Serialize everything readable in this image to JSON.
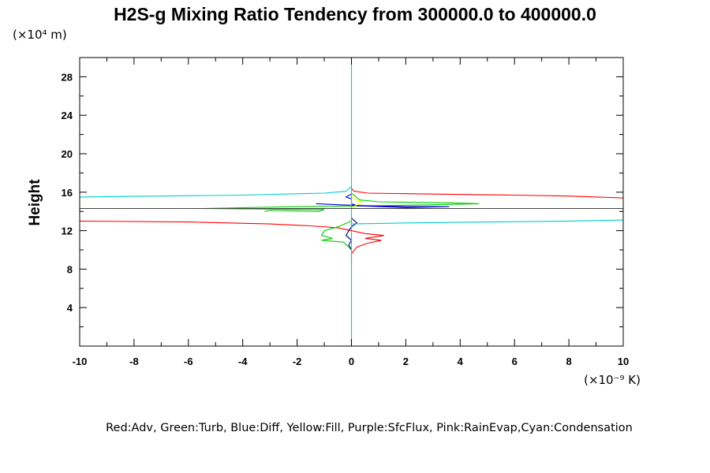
{
  "chart_data": {
    "type": "line",
    "title": "H2S-g Mixing Ratio Tendency from 300000.0 to 400000.0",
    "ylabel": "Height",
    "y_unit": "(×10⁴ m)",
    "x_unit": "(×10⁻⁹ K)",
    "legend_text": "Red:Adv, Green:Turb, Blue:Diff, Yellow:Fill, Purple:SfcFlux, Pink:RainEvap,Cyan:Condensation",
    "xlim": [
      -10,
      10
    ],
    "ylim": [
      0,
      30
    ],
    "x_ticks": [
      "-10",
      "-8",
      "-6",
      "-4",
      "-2",
      "0",
      "2",
      "4",
      "6",
      "8",
      "10"
    ],
    "y_ticks": [
      "4",
      "8",
      "12",
      "16",
      "20",
      "24",
      "28"
    ],
    "series": [
      {
        "name": "Adv",
        "color": "#ff0000",
        "points": [
          [
            -10,
            13.0
          ],
          [
            -6,
            12.9
          ],
          [
            -3,
            12.7
          ],
          [
            -1.5,
            12.5
          ],
          [
            -0.5,
            12.3
          ],
          [
            0,
            12.0
          ],
          [
            0.5,
            11.7
          ],
          [
            1.2,
            11.5
          ],
          [
            0.5,
            11.2
          ],
          [
            1.1,
            11.0
          ],
          [
            0.6,
            10.7
          ],
          [
            0.2,
            10.3
          ],
          [
            0,
            9.6
          ],
          [
            0,
            9.2
          ],
          [
            0,
            8.5
          ]
        ]
      },
      {
        "name": "Adv",
        "color": "#ff0000",
        "points": [
          [
            0,
            16.4
          ],
          [
            0.1,
            16.1
          ],
          [
            0.6,
            15.9
          ],
          [
            3,
            15.8
          ],
          [
            6,
            15.7
          ],
          [
            8,
            15.6
          ],
          [
            10,
            15.4
          ]
        ]
      },
      {
        "name": "Turb",
        "color": "#00cc00",
        "points": [
          [
            -1.0,
            14.2
          ],
          [
            -1.5,
            14.2
          ],
          [
            -5.5,
            14.3
          ],
          [
            -2,
            14.5
          ],
          [
            1,
            14.6
          ],
          [
            3,
            14.7
          ],
          [
            4.7,
            14.8
          ],
          [
            3.5,
            14.9
          ],
          [
            1,
            15.0
          ],
          [
            0.3,
            15.2
          ],
          [
            0,
            15.9
          ]
        ]
      },
      {
        "name": "Turb",
        "color": "#00cc00",
        "points": [
          [
            0,
            13.0
          ],
          [
            -0.5,
            12.4
          ],
          [
            -1.0,
            12.0
          ],
          [
            -1.1,
            11.5
          ],
          [
            -0.7,
            11.2
          ],
          [
            -1.1,
            11.0
          ],
          [
            -0.3,
            10.8
          ],
          [
            -0.1,
            10.3
          ],
          [
            0,
            10.0
          ]
        ]
      },
      {
        "name": "Turb",
        "color": "#00cc00",
        "points": [
          [
            -3.2,
            14.0
          ],
          [
            -3.0,
            14.1
          ],
          [
            -1.2,
            14.0
          ],
          [
            -1.0,
            14.2
          ]
        ]
      },
      {
        "name": "Diff",
        "color": "#0000cc",
        "points": [
          [
            -1.3,
            14.8
          ],
          [
            -0.5,
            14.7
          ],
          [
            0.5,
            14.6
          ],
          [
            2,
            14.5
          ],
          [
            3.6,
            14.5
          ],
          [
            2,
            14.4
          ],
          [
            1,
            14.5
          ],
          [
            0.2,
            14.6
          ],
          [
            0,
            14.8
          ],
          [
            0,
            15.3
          ],
          [
            -0.2,
            15.5
          ],
          [
            0,
            15.8
          ]
        ]
      },
      {
        "name": "Diff",
        "color": "#000080",
        "points": [
          [
            0,
            13.6
          ],
          [
            0,
            13.3
          ],
          [
            0.2,
            12.8
          ],
          [
            0,
            12.4
          ],
          [
            -0.1,
            12.0
          ],
          [
            -0.2,
            11.5
          ],
          [
            0,
            11.0
          ],
          [
            -0.1,
            10.5
          ],
          [
            0,
            10.0
          ]
        ]
      },
      {
        "name": "Fill",
        "color": "#ffff00",
        "points": [
          [
            0,
            14.3
          ],
          [
            0.2,
            14.7
          ],
          [
            0.4,
            15.0
          ],
          [
            0.1,
            15.3
          ],
          [
            0,
            15.6
          ]
        ]
      },
      {
        "name": "Condensation",
        "color": "#00cccc",
        "points": [
          [
            -10,
            15.5
          ],
          [
            -4,
            15.7
          ],
          [
            -1,
            15.9
          ],
          [
            -0.2,
            16.1
          ],
          [
            0,
            16.6
          ]
        ]
      },
      {
        "name": "Condensation",
        "color": "#00cccc",
        "points": [
          [
            0,
            12.7
          ],
          [
            2,
            12.8
          ],
          [
            5,
            12.9
          ],
          [
            8,
            13.0
          ],
          [
            10,
            13.1
          ]
        ]
      },
      {
        "name": "Condensation",
        "color": "#00cccc",
        "points": [
          [
            0,
            0
          ],
          [
            0,
            30
          ]
        ]
      },
      {
        "name": "Zero",
        "color": "#404040",
        "points": [
          [
            -10,
            14.3
          ],
          [
            10,
            14.3
          ]
        ]
      }
    ]
  }
}
